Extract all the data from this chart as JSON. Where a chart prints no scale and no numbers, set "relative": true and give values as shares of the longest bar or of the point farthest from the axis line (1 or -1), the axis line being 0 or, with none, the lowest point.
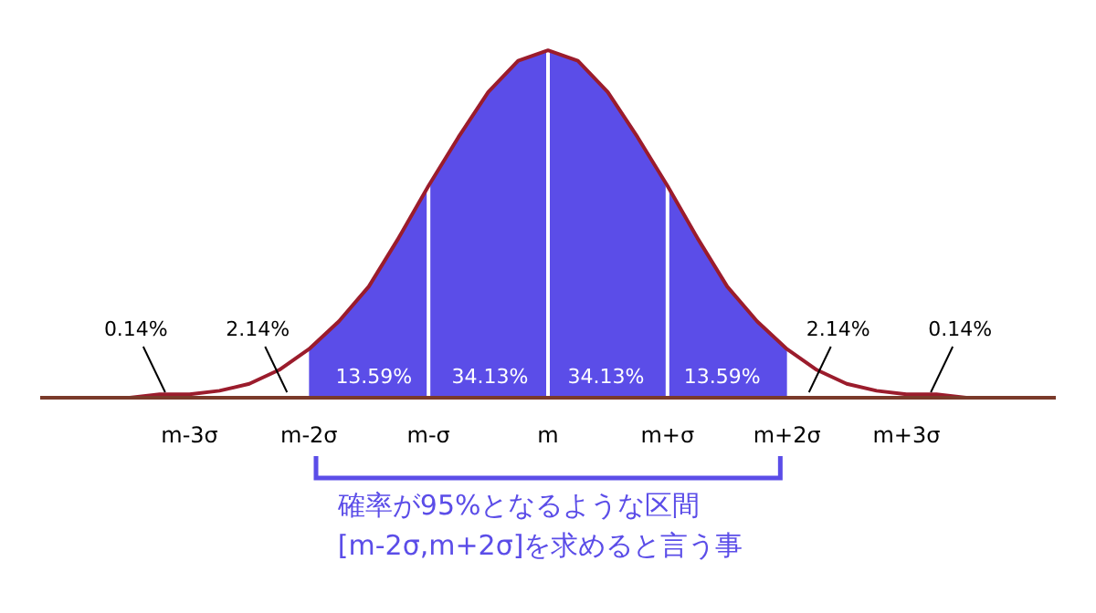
{
  "chart_data": {
    "type": "area",
    "relative": true,
    "categories": [
      null,
      null,
      null,
      null,
      null,
      "m-3σ",
      null,
      null,
      null,
      "m-2σ",
      null,
      null,
      null,
      "m-σ",
      null,
      null,
      null,
      "m",
      null,
      null,
      null,
      "m+σ",
      null,
      null,
      null,
      "m+2σ",
      null,
      null,
      null,
      "m+3σ",
      null,
      null,
      null,
      null,
      null
    ],
    "series": [
      {
        "type": "line",
        "color": "#9b1c2c",
        "values": [
          0,
          0,
          0,
          0,
          0.01,
          0.01,
          0.02,
          0.04,
          0.08,
          0.14,
          0.22,
          0.32,
          0.46,
          0.61,
          0.75,
          0.88,
          0.97,
          1,
          0.97,
          0.88,
          0.75,
          0.61,
          0.46,
          0.32,
          0.22,
          0.14,
          0.08,
          0.04,
          0.02,
          0.01,
          0.01,
          0,
          0,
          0,
          0
        ]
      },
      {
        "color": "#5b4de8",
        "values": [
          null,
          null,
          null,
          null,
          null,
          null,
          null,
          null,
          null,
          0.14,
          0.22,
          0.32,
          0.46,
          0.61,
          0.75,
          0.88,
          0.97,
          1,
          0.97,
          0.88,
          0.75,
          0.61,
          0.46,
          0.32,
          0.22,
          0.14,
          null,
          null,
          null,
          null,
          null,
          null,
          null,
          null,
          null
        ]
      }
    ],
    "ref_lines": [
      {
        "axis": "x",
        "value": "m-σ",
        "color": "#ffffff"
      },
      {
        "axis": "x",
        "value": "m",
        "color": "#ffffff"
      },
      {
        "axis": "x",
        "value": "m+σ",
        "color": "#ffffff"
      }
    ],
    "annotations": [
      "0.14%",
      "2.14%",
      "13.59%",
      "34.13%",
      "34.13%",
      "13.59%",
      "2.14%",
      "0.14%",
      "確率が95%となるような区間",
      "[m-2σ,m+2σ]を求めると言う事"
    ]
  }
}
